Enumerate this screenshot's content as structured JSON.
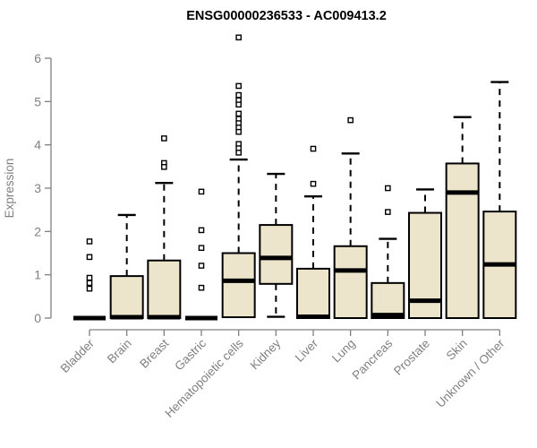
{
  "title": "ENSG00000236533 - AC009413.2",
  "chart_data": {
    "type": "boxplot",
    "title": "ENSG00000236533 - AC009413.2",
    "ylabel": "Expression",
    "ylim": [
      0,
      6
    ],
    "yticks": [
      0,
      1,
      2,
      3,
      4,
      5,
      6
    ],
    "grid": false,
    "legend": "none",
    "categories": [
      "Bladder",
      "Brain",
      "Breast",
      "Gastric",
      "Hematopoietic cells",
      "Kidney",
      "Liver",
      "Lung",
      "Pancreas",
      "Prostate",
      "Skin",
      "Unknown / Other"
    ],
    "series": [
      {
        "category": "Bladder",
        "q1": 0,
        "median": 0,
        "q3": 0,
        "whisker_low": 0,
        "whisker_high": 0,
        "outliers": [
          1.77,
          1.41,
          0.93,
          0.81,
          0.68
        ]
      },
      {
        "category": "Brain",
        "q1": 0,
        "median": 0.02,
        "q3": 0.97,
        "whisker_low": 0,
        "whisker_high": 2.38,
        "outliers": []
      },
      {
        "category": "Breast",
        "q1": 0,
        "median": 0.02,
        "q3": 1.33,
        "whisker_low": 0,
        "whisker_high": 3.12,
        "outliers": [
          4.15,
          3.58,
          3.49
        ]
      },
      {
        "category": "Gastric",
        "q1": 0,
        "median": 0,
        "q3": 0,
        "whisker_low": 0,
        "whisker_high": 0,
        "outliers": [
          2.92,
          2.03,
          1.62,
          1.21,
          0.7
        ]
      },
      {
        "category": "Hematopoietic cells",
        "q1": 0.02,
        "median": 0.86,
        "q3": 1.5,
        "whisker_low": 0.02,
        "whisker_high": 3.66,
        "outliers": [
          6.48,
          5.36,
          5.15,
          5.03,
          4.93,
          4.72,
          4.6,
          4.5,
          4.4,
          4.3,
          4.02,
          3.92,
          3.82
        ]
      },
      {
        "category": "Kidney",
        "q1": 0.79,
        "median": 1.39,
        "q3": 2.15,
        "whisker_low": 0.03,
        "whisker_high": 3.33,
        "outliers": []
      },
      {
        "category": "Liver",
        "q1": 0,
        "median": 0.03,
        "q3": 1.14,
        "whisker_low": 0,
        "whisker_high": 2.81,
        "outliers": [
          3.91,
          3.1
        ]
      },
      {
        "category": "Lung",
        "q1": 0,
        "median": 1.1,
        "q3": 1.66,
        "whisker_low": 0,
        "whisker_high": 3.8,
        "outliers": [
          4.57
        ]
      },
      {
        "category": "Pancreas",
        "q1": 0,
        "median": 0.07,
        "q3": 0.81,
        "whisker_low": 0,
        "whisker_high": 1.83,
        "outliers": [
          3.0,
          2.45
        ]
      },
      {
        "category": "Prostate",
        "q1": 0,
        "median": 0.4,
        "q3": 2.43,
        "whisker_low": 0,
        "whisker_high": 2.97,
        "outliers": []
      },
      {
        "category": "Skin",
        "q1": 0,
        "median": 2.9,
        "q3": 3.57,
        "whisker_low": 0,
        "whisker_high": 4.64,
        "outliers": []
      },
      {
        "category": "Unknown / Other",
        "q1": 0,
        "median": 1.24,
        "q3": 2.46,
        "whisker_low": 0,
        "whisker_high": 5.45,
        "outliers": []
      }
    ],
    "colors": {
      "box_fill": "#ece5cc",
      "box_border": "#000000",
      "median": "#000000",
      "whisker": "#000000",
      "outlier_stroke": "#000000",
      "outlier_fill": "#ffffff",
      "axis": "#808080",
      "tick_label": "#808080",
      "title": "#000000",
      "background": "#ffffff"
    }
  }
}
